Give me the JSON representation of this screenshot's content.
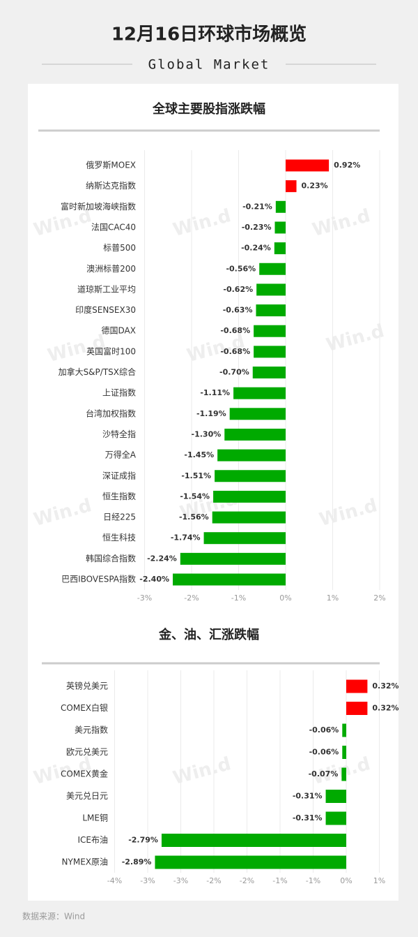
{
  "header": {
    "title": "12月16日环球市场概览",
    "subtitle": "Global Market"
  },
  "watermark": "Win.d",
  "footer": "数据来源：Wind",
  "chart_data": [
    {
      "type": "hbar",
      "title": "全球主要股指涨跌幅",
      "categories": [
        "俄罗斯MOEX",
        "纳斯达克指数",
        "富时新加坡海峡指数",
        "法国CAC40",
        "标普500",
        "澳洲标普200",
        "道琼斯工业平均",
        "印度SENSEX30",
        "德国DAX",
        "英国富时100",
        "加拿大S&P/TSX综合",
        "上证指数",
        "台湾加权指数",
        "沙特全指",
        "万得全A",
        "深证成指",
        "恒生指数",
        "日经225",
        "恒生科技",
        "韩国综合指数",
        "巴西IBOVESPA指数"
      ],
      "values": [
        0.92,
        0.23,
        -0.21,
        -0.23,
        -0.24,
        -0.56,
        -0.62,
        -0.63,
        -0.68,
        -0.68,
        -0.7,
        -1.11,
        -1.19,
        -1.3,
        -1.45,
        -1.51,
        -1.54,
        -1.56,
        -1.74,
        -2.24,
        -2.4
      ],
      "value_labels": [
        "0.92%",
        "0.23%",
        "-0.21%",
        "-0.23%",
        "-0.24%",
        "-0.56%",
        "-0.62%",
        "-0.63%",
        "-0.68%",
        "-0.68%",
        "-0.70%",
        "-1.11%",
        "-1.19%",
        "-1.30%",
        "-1.45%",
        "-1.51%",
        "-1.54%",
        "-1.56%",
        "-1.74%",
        "-2.24%",
        "-2.40%"
      ],
      "color_positive": "#ff0000",
      "color_negative": "#00aa00",
      "xlim": [
        -3,
        2
      ],
      "xticks": [
        {
          "value": -3,
          "label": "-3%"
        },
        {
          "value": -2,
          "label": "-2%"
        },
        {
          "value": -1,
          "label": "-1%"
        },
        {
          "value": 0,
          "label": "0%"
        },
        {
          "value": 1,
          "label": "1%"
        },
        {
          "value": 2,
          "label": "2%"
        }
      ],
      "grid": true
    },
    {
      "type": "hbar",
      "title": "金、油、汇涨跌幅",
      "categories": [
        "英镑兑美元",
        "COMEX白银",
        "美元指数",
        "欧元兑美元",
        "COMEX黄金",
        "美元兑日元",
        "LME铜",
        "ICE布油",
        "NYMEX原油"
      ],
      "values": [
        0.32,
        0.32,
        -0.06,
        -0.06,
        -0.07,
        -0.31,
        -0.31,
        -2.79,
        -2.89
      ],
      "value_labels": [
        "0.32%",
        "0.32%",
        "-0.06%",
        "-0.06%",
        "-0.07%",
        "-0.31%",
        "-0.31%",
        "-2.79%",
        "-2.89%"
      ],
      "color_positive": "#ff0000",
      "color_negative": "#00aa00",
      "xlim": [
        -3.5,
        0.5
      ],
      "xticks": [
        {
          "value": -3.5,
          "label": "-4%"
        },
        {
          "value": -3,
          "label": "-3%"
        },
        {
          "value": -2.5,
          "label": "-3%"
        },
        {
          "value": -2,
          "label": "-2%"
        },
        {
          "value": -1.5,
          "label": "-2%"
        },
        {
          "value": -1,
          "label": "-1%"
        },
        {
          "value": -0.5,
          "label": "-1%"
        },
        {
          "value": 0,
          "label": "0%"
        },
        {
          "value": 0.5,
          "label": "1%"
        }
      ],
      "grid": true
    }
  ]
}
